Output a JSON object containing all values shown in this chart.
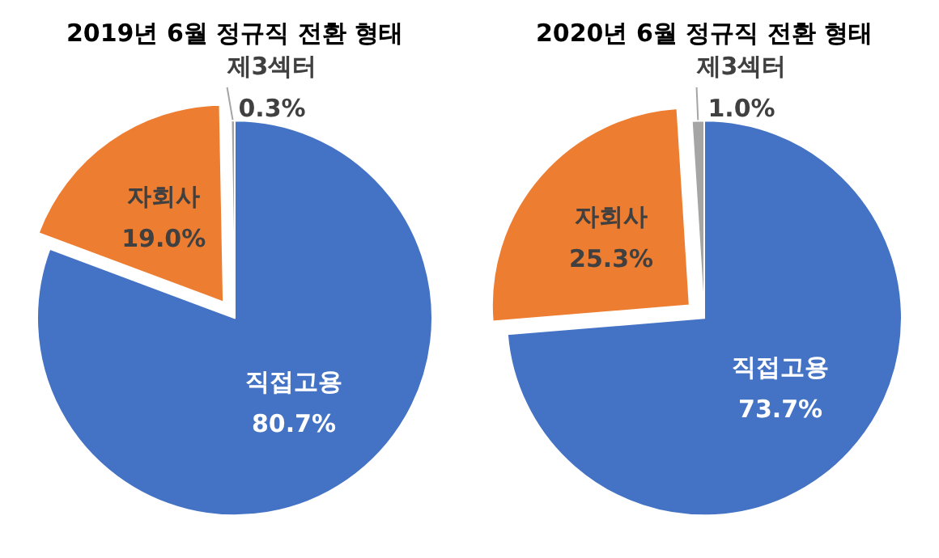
{
  "chart_data": [
    {
      "type": "pie",
      "title": "2019년 6월 정규직 전환 형태",
      "categories": [
        "직접고용",
        "자회사",
        "제3섹터"
      ],
      "values": [
        80.7,
        19.0,
        0.3
      ],
      "colors": [
        "#4472c4",
        "#ed7d31",
        "#a5a5a5"
      ],
      "value_labels": [
        "80.7%",
        "19.0%",
        "0.3%"
      ],
      "legend": false
    },
    {
      "type": "pie",
      "title": "2020년 6월 정규직 전환 형태",
      "categories": [
        "직접고용",
        "자회사",
        "제3섹터"
      ],
      "values": [
        73.7,
        25.3,
        1.0
      ],
      "colors": [
        "#4472c4",
        "#ed7d31",
        "#a5a5a5"
      ],
      "value_labels": [
        "73.7%",
        "25.3%",
        "1.0%"
      ],
      "legend": false
    }
  ]
}
